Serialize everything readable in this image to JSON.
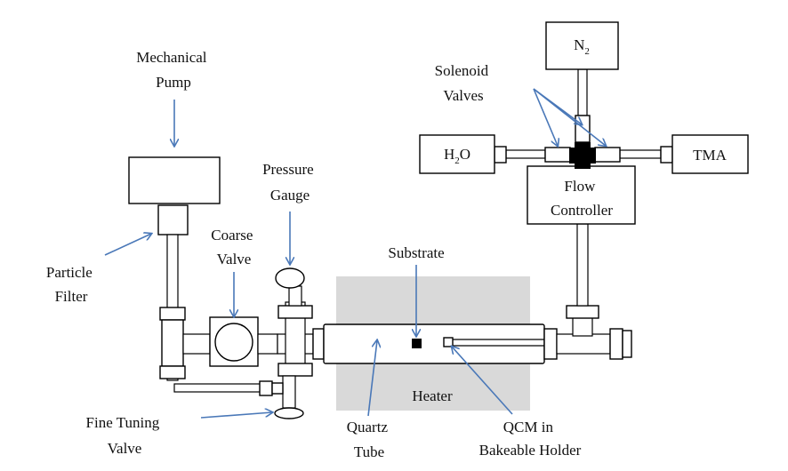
{
  "labels": {
    "mechanical_pump": [
      "Mechanical",
      "Pump"
    ],
    "pressure_gauge": [
      "Pressure",
      "Gauge"
    ],
    "coarse_valve": [
      "Coarse",
      "Valve"
    ],
    "particle_filter": [
      "Particle",
      "Filter"
    ],
    "fine_tuning_valve": [
      "Fine Tuning",
      "Valve"
    ],
    "substrate": "Substrate",
    "heater": "Heater",
    "quartz_tube": [
      "Quartz",
      "Tube"
    ],
    "qcm": [
      "QCM in",
      "Bakeable Holder"
    ],
    "solenoid_valves": [
      "Solenoid",
      "Valves"
    ],
    "flow_controller": [
      "Flow",
      "Controller"
    ],
    "n2": {
      "main": "N",
      "sub": "2"
    },
    "h2o": {
      "pre": "H",
      "sub": "2",
      "post": "O"
    },
    "tma": "TMA"
  },
  "colors": {
    "arrow": "#4a78b8",
    "heater": "#d9d9d9",
    "solenoid": "#000000"
  }
}
